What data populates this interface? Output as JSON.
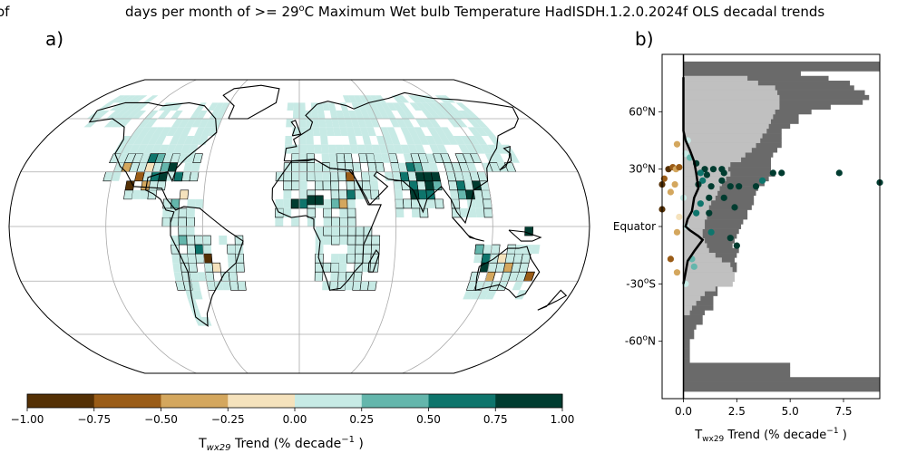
{
  "title": {
    "left_fragment": "e of",
    "main_prefix": "days per month of >= 29",
    "main_sup": "o",
    "main_suffix": "C Maximum Wet bulb Temperature HadISDH.1.2.0.2024f OLS decadal trends"
  },
  "panel_a": {
    "label": "a)",
    "colorbar": {
      "ticks": [
        "−1.00",
        "−0.75",
        "−0.50",
        "−0.25",
        "0.00",
        "0.25",
        "0.50",
        "0.75",
        "1.00"
      ],
      "bins": [
        -1.0,
        -0.75,
        -0.5,
        -0.25,
        0.0,
        0.25,
        0.5,
        0.75,
        1.0
      ],
      "colors": [
        "#543005",
        "#9a5c17",
        "#d4a75e",
        "#f5e2bc",
        "#c7eae5",
        "#64b6ac",
        "#0e756c",
        "#003c30"
      ],
      "label_prefix": "T",
      "label_sub": "wx29",
      "label_mid": " Trend (% decade",
      "label_sup": "−1",
      "label_suffix": " )"
    }
  },
  "panel_b": {
    "label": "b)",
    "y_ticks": [
      {
        "value": 60,
        "label_pre": "60",
        "label_sup": "o",
        "label_post": "N"
      },
      {
        "value": 30,
        "label_pre": "30",
        "label_sup": "o",
        "label_post": "N"
      },
      {
        "value": 0,
        "label_pre": "Equator",
        "label_sup": "",
        "label_post": ""
      },
      {
        "value": -30,
        "label_pre": "-30",
        "label_sup": "o",
        "label_post": "S"
      },
      {
        "value": -60,
        "label_pre": "-60",
        "label_sup": "o",
        "label_post": "N"
      }
    ],
    "x_ticks": [
      "0.0",
      "2.5",
      "5.0",
      "7.5"
    ],
    "x_label_prefix": "T",
    "x_label_sub": "wx29",
    "x_label_mid": " Trend (% decade",
    "x_label_sup": "−1",
    "x_label_suffix": " )"
  },
  "chart_data": [
    {
      "type": "heatmap",
      "title": "",
      "projection": "Robinson",
      "colorbar_range": [
        -1.0,
        1.0
      ],
      "colorbar_bins": 8,
      "description_of_values": "gridded decadal trends in days per month with Tw max >= 29C; most land boxes 0.0 to 0.25, scattered positive (0.5 to 1.0) in India, Sahel, SE Asia, Gulf Coast; scattered negative in Mexico, Australia"
    },
    {
      "type": "bar",
      "orientation": "horizontal",
      "xlim": [
        -1.0,
        9.2
      ],
      "ylim": [
        -90,
        90
      ],
      "ylabel": "",
      "grey_bars_dark": [
        {
          "lat": 85,
          "value": 9.2
        },
        {
          "lat": 82.5,
          "value": 9.2
        },
        {
          "lat": 80,
          "value": 5.5
        },
        {
          "lat": 77.5,
          "value": 6.8
        },
        {
          "lat": 75,
          "value": 7.8
        },
        {
          "lat": 72.5,
          "value": 8.0
        },
        {
          "lat": 70,
          "value": 8.5
        },
        {
          "lat": 67.5,
          "value": 8.7
        },
        {
          "lat": 65,
          "value": 8.4
        },
        {
          "lat": 62.5,
          "value": 6.9
        },
        {
          "lat": 60,
          "value": 6.0
        },
        {
          "lat": 57.5,
          "value": 5.4
        },
        {
          "lat": 55,
          "value": 5.4
        },
        {
          "lat": 52.5,
          "value": 5.0
        },
        {
          "lat": 50,
          "value": 4.6
        },
        {
          "lat": 47.5,
          "value": 4.6
        },
        {
          "lat": 45,
          "value": 4.6
        },
        {
          "lat": 42.5,
          "value": 4.6
        },
        {
          "lat": 40,
          "value": 4.4
        },
        {
          "lat": 37.5,
          "value": 4.2
        },
        {
          "lat": 35,
          "value": 4.1
        },
        {
          "lat": 32.5,
          "value": 4.1
        },
        {
          "lat": 30,
          "value": 4.1
        },
        {
          "lat": 27.5,
          "value": 4.3
        },
        {
          "lat": 25,
          "value": 4.0
        },
        {
          "lat": 22.5,
          "value": 3.8
        },
        {
          "lat": 20,
          "value": 3.5
        },
        {
          "lat": 17.5,
          "value": 3.4
        },
        {
          "lat": 15,
          "value": 3.3
        },
        {
          "lat": 12.5,
          "value": 3.3
        },
        {
          "lat": 10,
          "value": 3.2
        },
        {
          "lat": 7.5,
          "value": 3.0
        },
        {
          "lat": 5,
          "value": 3.0
        },
        {
          "lat": 2.5,
          "value": 2.8
        },
        {
          "lat": 0,
          "value": 2.7
        },
        {
          "lat": -2.5,
          "value": 2.6
        },
        {
          "lat": -5,
          "value": 2.5
        },
        {
          "lat": -7.5,
          "value": 2.4
        },
        {
          "lat": -10,
          "value": 2.3
        },
        {
          "lat": -12.5,
          "value": 2.6
        },
        {
          "lat": -15,
          "value": 2.5
        },
        {
          "lat": -17.5,
          "value": 2.4
        },
        {
          "lat": -20,
          "value": 2.5
        },
        {
          "lat": -22.5,
          "value": 2.5
        },
        {
          "lat": -25,
          "value": 2.4
        },
        {
          "lat": -27.5,
          "value": 2.4
        },
        {
          "lat": -30,
          "value": 2.3
        },
        {
          "lat": -32.5,
          "value": 1.6
        },
        {
          "lat": -35,
          "value": 1.6
        },
        {
          "lat": -37.5,
          "value": 1.4
        },
        {
          "lat": -40,
          "value": 1.4
        },
        {
          "lat": -42.5,
          "value": 1.4
        },
        {
          "lat": -45,
          "value": 1.0
        },
        {
          "lat": -47.5,
          "value": 0.9
        },
        {
          "lat": -50,
          "value": 0.9
        },
        {
          "lat": -52.5,
          "value": 0.6
        },
        {
          "lat": -55,
          "value": 0.5
        },
        {
          "lat": -57.5,
          "value": 0.5
        },
        {
          "lat": -60,
          "value": 0.3
        },
        {
          "lat": -62.5,
          "value": 0.3
        },
        {
          "lat": -65,
          "value": 0.3
        },
        {
          "lat": -67.5,
          "value": 0.3
        },
        {
          "lat": -70,
          "value": 0.3
        },
        {
          "lat": -72.5,
          "value": 5.0
        },
        {
          "lat": -75,
          "value": 5.0
        },
        {
          "lat": -77.5,
          "value": 5.0
        },
        {
          "lat": -80,
          "value": 9.2
        },
        {
          "lat": -82.5,
          "value": 9.2
        },
        {
          "lat": -85,
          "value": 9.2
        }
      ],
      "grey_bars_light": [
        {
          "lat": 77.5,
          "value": 3.0
        },
        {
          "lat": 75,
          "value": 3.5
        },
        {
          "lat": 72.5,
          "value": 4.3
        },
        {
          "lat": 70,
          "value": 4.4
        },
        {
          "lat": 67.5,
          "value": 4.5
        },
        {
          "lat": 65,
          "value": 4.5
        },
        {
          "lat": 62.5,
          "value": 4.5
        },
        {
          "lat": 60,
          "value": 4.3
        },
        {
          "lat": 57.5,
          "value": 4.2
        },
        {
          "lat": 55,
          "value": 4.1
        },
        {
          "lat": 52.5,
          "value": 4.0
        },
        {
          "lat": 50,
          "value": 3.9
        },
        {
          "lat": 47.5,
          "value": 3.7
        },
        {
          "lat": 45,
          "value": 3.6
        },
        {
          "lat": 42.5,
          "value": 3.4
        },
        {
          "lat": 40,
          "value": 3.2
        },
        {
          "lat": 37.5,
          "value": 2.9
        },
        {
          "lat": 35,
          "value": 2.7
        },
        {
          "lat": 32.5,
          "value": 2.2
        },
        {
          "lat": 30,
          "value": 2.1
        },
        {
          "lat": 27.5,
          "value": 2.2
        },
        {
          "lat": 25,
          "value": 2.0
        },
        {
          "lat": 22.5,
          "value": 1.8
        },
        {
          "lat": 20,
          "value": 1.7
        },
        {
          "lat": 17.5,
          "value": 1.6
        },
        {
          "lat": 15,
          "value": 1.5
        },
        {
          "lat": 12.5,
          "value": 1.3
        },
        {
          "lat": 10,
          "value": 1.2
        },
        {
          "lat": 7.5,
          "value": 1.2
        },
        {
          "lat": 5,
          "value": 1.1
        },
        {
          "lat": 2.5,
          "value": 1.0
        },
        {
          "lat": 0,
          "value": 1.0
        },
        {
          "lat": -2.5,
          "value": 0.9
        },
        {
          "lat": -5,
          "value": 0.9
        },
        {
          "lat": -7.5,
          "value": 1.0
        },
        {
          "lat": -10,
          "value": 1.1
        },
        {
          "lat": -12.5,
          "value": 1.2
        },
        {
          "lat": -15,
          "value": 1.5
        },
        {
          "lat": -17.5,
          "value": 1.8
        },
        {
          "lat": -20,
          "value": 2.2
        },
        {
          "lat": -22.5,
          "value": 2.3
        },
        {
          "lat": -25,
          "value": 2.4
        },
        {
          "lat": -27.5,
          "value": 2.4
        },
        {
          "lat": -30,
          "value": 2.3
        },
        {
          "lat": -32.5,
          "value": 1.5
        },
        {
          "lat": -35,
          "value": 1.0
        },
        {
          "lat": -37.5,
          "value": 0.8
        },
        {
          "lat": -40,
          "value": 0.6
        },
        {
          "lat": -42.5,
          "value": 0.4
        },
        {
          "lat": -45,
          "value": 0.3
        }
      ],
      "scatter_points": [
        {
          "x": -0.7,
          "y": 30,
          "color": "#543005"
        },
        {
          "x": -0.5,
          "y": 31,
          "color": "#9a5c17"
        },
        {
          "x": -0.35,
          "y": 30,
          "color": "#d4a75e"
        },
        {
          "x": -0.2,
          "y": 31,
          "color": "#9a5c17"
        },
        {
          "x": -0.9,
          "y": 25,
          "color": "#9a5c17"
        },
        {
          "x": -1.0,
          "y": 22,
          "color": "#543005"
        },
        {
          "x": -0.4,
          "y": 22,
          "color": "#d4a75e"
        },
        {
          "x": -0.6,
          "y": 18,
          "color": "#d4a75e"
        },
        {
          "x": -1.0,
          "y": 9,
          "color": "#543005"
        },
        {
          "x": -0.3,
          "y": 43,
          "color": "#d4a75e"
        },
        {
          "x": -0.3,
          "y": -3,
          "color": "#d4a75e"
        },
        {
          "x": -0.6,
          "y": -17,
          "color": "#9a5c17"
        },
        {
          "x": -0.3,
          "y": -24,
          "color": "#d4a75e"
        },
        {
          "x": -0.2,
          "y": 5,
          "color": "#f5e2bc"
        },
        {
          "x": 0.1,
          "y": 38,
          "color": "#c7eae5"
        },
        {
          "x": 0.3,
          "y": 36,
          "color": "#64b6ac"
        },
        {
          "x": 0.6,
          "y": 33,
          "color": "#003c30"
        },
        {
          "x": 1.0,
          "y": 30,
          "color": "#003c30"
        },
        {
          "x": 1.4,
          "y": 30,
          "color": "#003c30"
        },
        {
          "x": 1.8,
          "y": 30,
          "color": "#003c30"
        },
        {
          "x": 1.9,
          "y": 28,
          "color": "#003c30"
        },
        {
          "x": 0.8,
          "y": 28,
          "color": "#0e756c"
        },
        {
          "x": 1.1,
          "y": 27,
          "color": "#003c30"
        },
        {
          "x": 0.9,
          "y": 24,
          "color": "#0e756c"
        },
        {
          "x": 1.8,
          "y": 24,
          "color": "#003c30"
        },
        {
          "x": 0.7,
          "y": 22,
          "color": "#003c30"
        },
        {
          "x": 1.3,
          "y": 21,
          "color": "#003c30"
        },
        {
          "x": 2.2,
          "y": 21,
          "color": "#003c30"
        },
        {
          "x": 2.6,
          "y": 21,
          "color": "#003c30"
        },
        {
          "x": 3.4,
          "y": 21,
          "color": "#003c30"
        },
        {
          "x": 3.7,
          "y": 24,
          "color": "#0e756c"
        },
        {
          "x": 4.2,
          "y": 28,
          "color": "#003c30"
        },
        {
          "x": 4.6,
          "y": 28,
          "color": "#003c30"
        },
        {
          "x": 7.3,
          "y": 28,
          "color": "#003c30"
        },
        {
          "x": 9.2,
          "y": 23,
          "color": "#003c30"
        },
        {
          "x": 1.2,
          "y": 15,
          "color": "#003c30"
        },
        {
          "x": 1.9,
          "y": 15,
          "color": "#003c30"
        },
        {
          "x": 0.8,
          "y": 12,
          "color": "#0e756c"
        },
        {
          "x": 0.6,
          "y": 7,
          "color": "#0e756c"
        },
        {
          "x": 1.2,
          "y": 7,
          "color": "#003c30"
        },
        {
          "x": 2.4,
          "y": 10,
          "color": "#003c30"
        },
        {
          "x": 1.3,
          "y": -3,
          "color": "#0e756c"
        },
        {
          "x": 2.2,
          "y": -6,
          "color": "#003c30"
        },
        {
          "x": 2.5,
          "y": -10,
          "color": "#003c30"
        },
        {
          "x": 0.4,
          "y": -17,
          "color": "#64b6ac"
        },
        {
          "x": 0.5,
          "y": -21,
          "color": "#64b6ac"
        },
        {
          "x": 0.1,
          "y": 0,
          "color": "#c7eae5"
        },
        {
          "x": 0.0,
          "y": 15,
          "color": "#c7eae5"
        },
        {
          "x": 0.1,
          "y": -30,
          "color": "#c7eae5"
        },
        {
          "x": 0.2,
          "y": 45,
          "color": "#c7eae5"
        }
      ],
      "mean_line": [
        {
          "x": 0.0,
          "y": 78
        },
        {
          "x": 0.0,
          "y": 50
        },
        {
          "x": 0.1,
          "y": 45
        },
        {
          "x": 0.3,
          "y": 40
        },
        {
          "x": 0.5,
          "y": 34
        },
        {
          "x": 0.6,
          "y": 28
        },
        {
          "x": 0.7,
          "y": 20
        },
        {
          "x": 0.5,
          "y": 15
        },
        {
          "x": 0.4,
          "y": 8
        },
        {
          "x": 0.2,
          "y": 4
        },
        {
          "x": 0.1,
          "y": 0
        },
        {
          "x": 0.3,
          "y": -2
        },
        {
          "x": 0.7,
          "y": -5
        },
        {
          "x": 0.9,
          "y": -7
        },
        {
          "x": 0.5,
          "y": -13
        },
        {
          "x": 0.2,
          "y": -18
        },
        {
          "x": 0.1,
          "y": -24
        },
        {
          "x": 0.0,
          "y": -30
        }
      ]
    }
  ]
}
